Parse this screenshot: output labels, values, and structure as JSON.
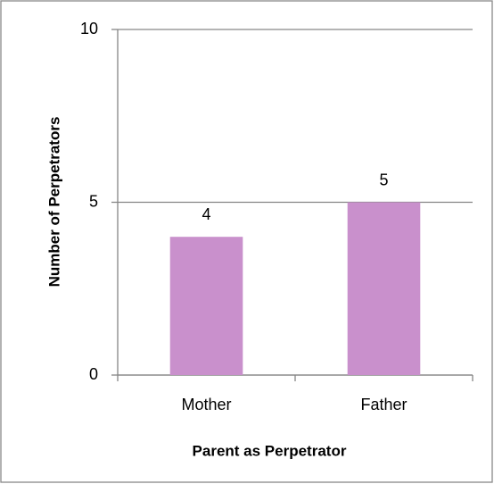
{
  "chart_data": {
    "type": "bar",
    "x_label": "Parent as Perpetrator",
    "y_label": "Number of Perpetrators",
    "categories": [
      "Mother",
      "Father"
    ],
    "values": [
      4,
      5
    ],
    "color": "#c990cc",
    "ylim": [
      0,
      10
    ],
    "yticks": [
      0,
      5,
      10
    ],
    "grid": true,
    "data_labels": true
  }
}
